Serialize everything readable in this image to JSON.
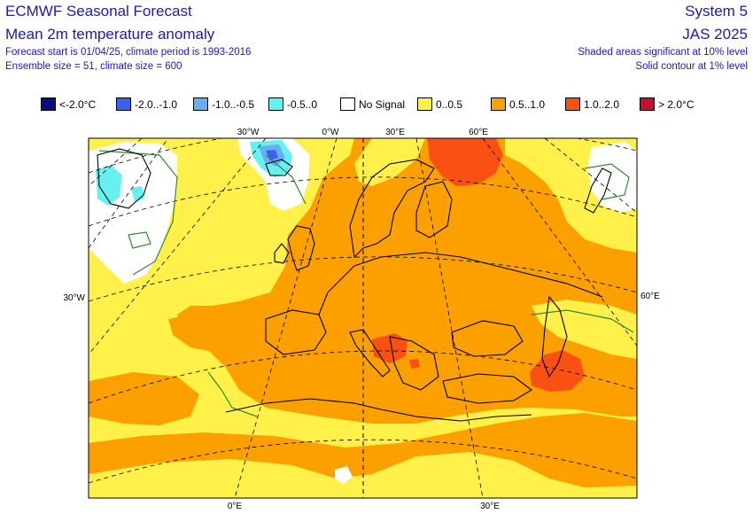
{
  "header": {
    "left": {
      "title": "ECMWF Seasonal Forecast",
      "subtitle": "Mean 2m temperature anomaly",
      "forecast_info": "Forecast start is 01/04/25, climate period is 1993-2016",
      "ensemble_info": "Ensemble size = 51, climate size = 600"
    },
    "right": {
      "system": "System 5",
      "season": "JAS 2025",
      "significance_note": "Shaded areas significant at 10% level",
      "contour_note": "Solid contour at 1% level"
    }
  },
  "legend": [
    {
      "label": "<-2.0°C",
      "color": "#0b0b80"
    },
    {
      "label": "-2.0..-1.0",
      "color": "#3a60f0"
    },
    {
      "label": "-1.0..-0.5",
      "color": "#6aaef2"
    },
    {
      "label": "-0.5..0",
      "color": "#66f0f0"
    },
    {
      "label": "No Signal",
      "color": "#ffffff"
    },
    {
      "label": "0..0.5",
      "color": "#fff04a"
    },
    {
      "label": "0.5..1.0",
      "color": "#fca000"
    },
    {
      "label": "1.0..2.0",
      "color": "#fa5014"
    },
    {
      "label": "> 2.0°C",
      "color": "#c8102a"
    }
  ],
  "map": {
    "grid_labels": {
      "top": [
        "30°W",
        "0°W",
        "30°E",
        "60°E"
      ],
      "left": [
        "30°W"
      ],
      "right": [
        "60°E"
      ],
      "bottom": [
        "0°E",
        "30°E"
      ]
    },
    "region": "Europe"
  }
}
